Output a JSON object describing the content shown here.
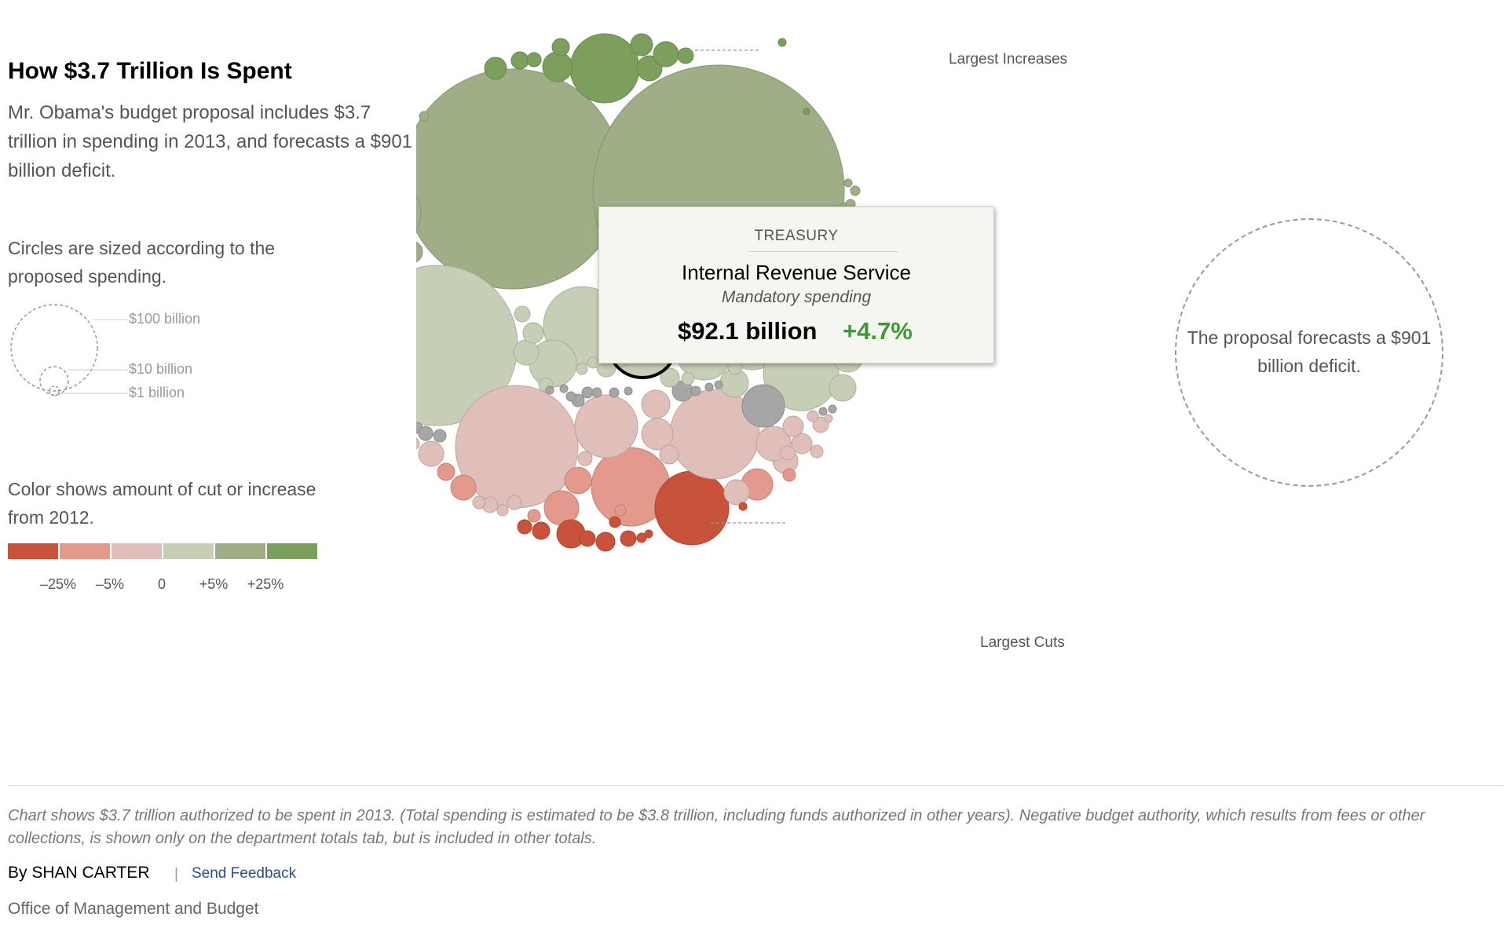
{
  "header": {
    "title": "How $3.7 Trillion Is Spent",
    "subtitle": "Mr. Obama's budget proposal includes $3.7 trillion in spending in 2013, and forecasts a $901 billion deficit."
  },
  "legend": {
    "size_note": "Circles are sized according to the proposed spending.",
    "size_labels": [
      "$100 billion",
      "$10 billion",
      "$1 billion"
    ],
    "color_note": "Color shows amount of cut or increase from 2012.",
    "color_swatches": [
      "#c9533a",
      "#e3998b",
      "#e0bfba",
      "#c6cfb5",
      "#9eae87",
      "#7d9f5e"
    ],
    "color_ticks": [
      "–25%",
      "–5%",
      "0",
      "+5%",
      "+25%"
    ]
  },
  "callouts": {
    "increases": "Largest Increases",
    "cuts": "Largest Cuts"
  },
  "tooltip": {
    "department": "TREASURY",
    "name": "Internal Revenue Service",
    "type": "Mandatory spending",
    "amount": "$92.1 billion",
    "change": "+4.7%"
  },
  "deficit": {
    "text": "The proposal forecasts a $901 billion deficit."
  },
  "footer": {
    "note": "Chart shows $3.7 trillion authorized to be spent in 2013. (Total spending is estimated to be $3.8 trillion, including funds authorized in other years). Negative budget authority, which results from fees or other collections, is shown only on the department totals tab, but is included in other totals.",
    "byline": "By SHAN CARTER",
    "separator": "|",
    "feedback": "Send Feedback",
    "source": "Office of Management and Budget"
  },
  "colors": {
    "cut_large": "#c9533a",
    "cut_mid": "#e3998b",
    "cut_small": "#e0bfba",
    "inc_small": "#c6cfb5",
    "inc_mid": "#9eae87",
    "inc_large": "#7d9f5e",
    "neutral": "#a6a6a6",
    "change_positive": "#3d9a34"
  },
  "chart_data": {
    "type": "bubble",
    "title": "How $3.7 Trillion Is Spent",
    "size_unit": "billion dollars",
    "color_scale_percent_change": [
      -25,
      -5,
      0,
      5,
      25
    ],
    "highlighted": {
      "department": "TREASURY",
      "name": "Internal Revenue Service",
      "type": "Mandatory spending",
      "amount_billion": 92.1,
      "change_percent": 4.7
    },
    "deficit_billion": 901,
    "total_trillion": 3.7
  }
}
